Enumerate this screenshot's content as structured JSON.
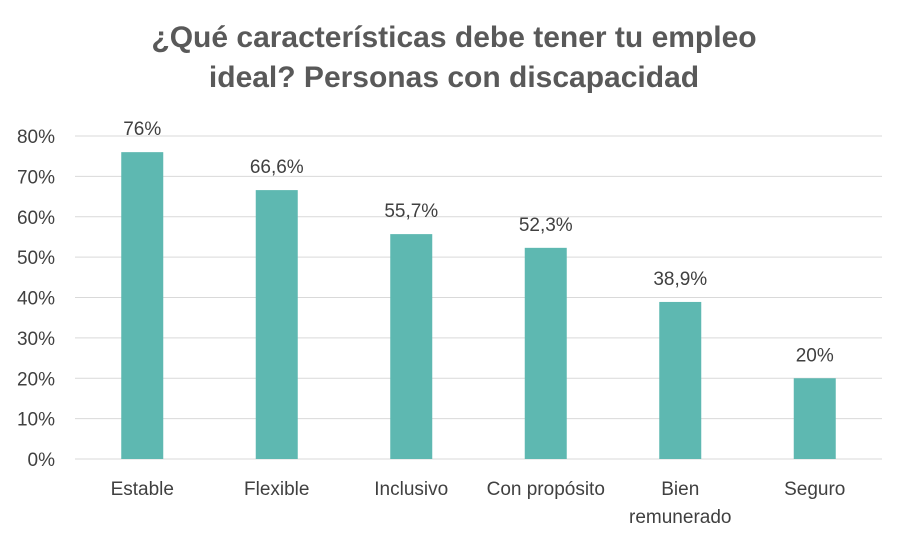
{
  "chart_data": {
    "type": "bar",
    "title_lines": [
      "¿Qué características debe tener tu empleo",
      "ideal? Personas con discapacidad"
    ],
    "categories": [
      [
        "Estable"
      ],
      [
        "Flexible"
      ],
      [
        "Inclusivo"
      ],
      [
        "Con propósito"
      ],
      [
        "Bien",
        "remunerado"
      ],
      [
        "Seguro"
      ]
    ],
    "values": [
      76,
      66.6,
      55.7,
      52.3,
      38.9,
      20
    ],
    "data_labels": [
      "76%",
      "66,6%",
      "55,7%",
      "52,3%",
      "38,9%",
      "20%"
    ],
    "y_ticks": [
      0,
      10,
      20,
      30,
      40,
      50,
      60,
      70,
      80
    ],
    "y_tick_labels": [
      "0%",
      "10%",
      "20%",
      "30%",
      "40%",
      "50%",
      "60%",
      "70%",
      "80%"
    ],
    "ylim": [
      0,
      80
    ],
    "xlabel": "",
    "ylabel": "",
    "grid": true,
    "legend": "none",
    "bar_color": "#5eb8b1",
    "grid_color": "#d9d9d9",
    "axis_color": "#d9d9d9",
    "text_color": "#404040",
    "title_color": "#595959"
  }
}
